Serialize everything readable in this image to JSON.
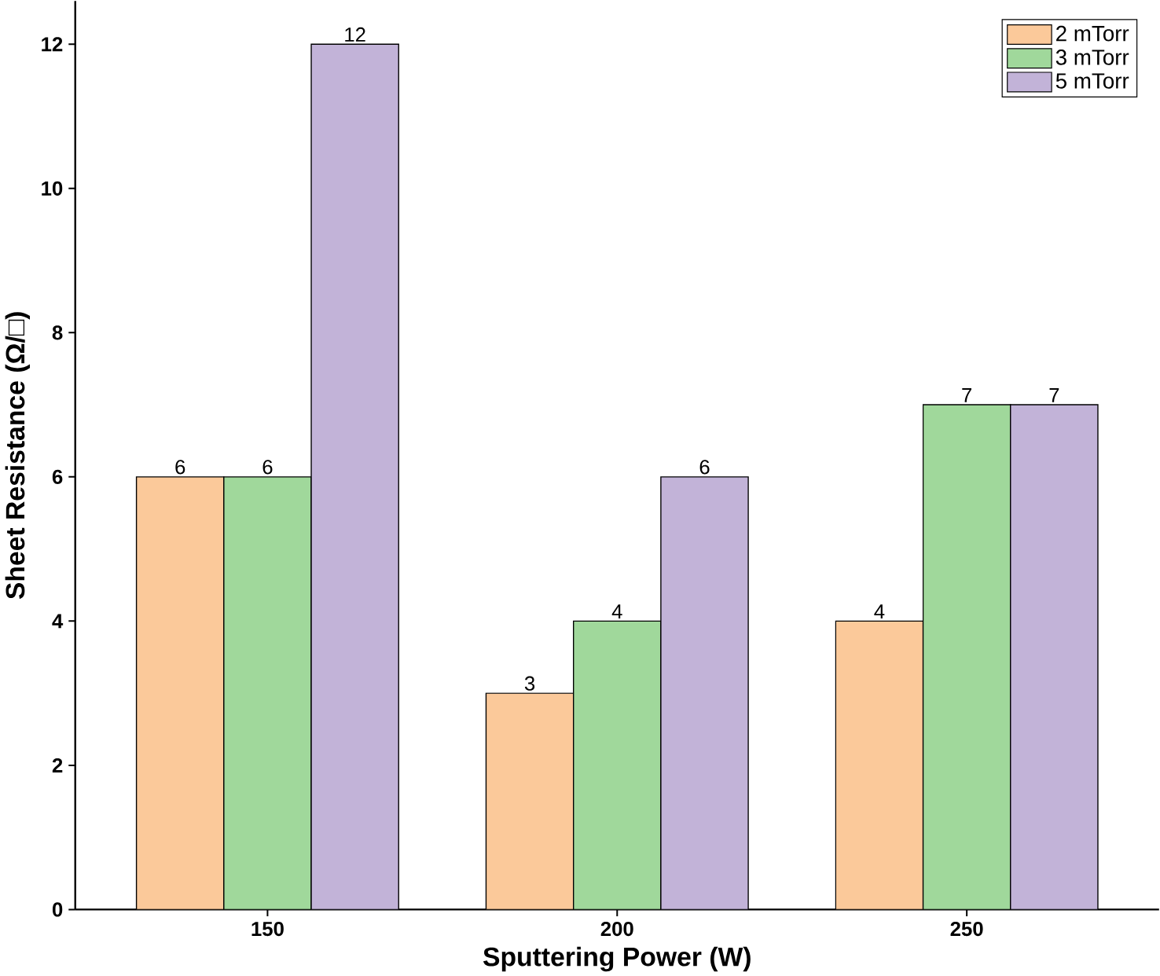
{
  "chart_data": {
    "type": "bar",
    "xlabel": "Sputtering Power (W)",
    "ylabel": "Sheet Resistance (Ω/□)",
    "categories": [
      "150",
      "200",
      "250"
    ],
    "series": [
      {
        "name": "2 mTorr",
        "color": "#fbc99a",
        "values": [
          6,
          3,
          4
        ]
      },
      {
        "name": "3 mTorr",
        "color": "#a0d89b",
        "values": [
          6,
          4,
          7
        ]
      },
      {
        "name": "5 mTorr",
        "color": "#c2b3d8",
        "values": [
          12,
          6,
          7
        ]
      }
    ],
    "ylim": [
      0,
      12.6
    ],
    "yticks": [
      0,
      2,
      4,
      6,
      8,
      10,
      12
    ],
    "data_labels": true,
    "legend": "top right",
    "grid": false
  }
}
